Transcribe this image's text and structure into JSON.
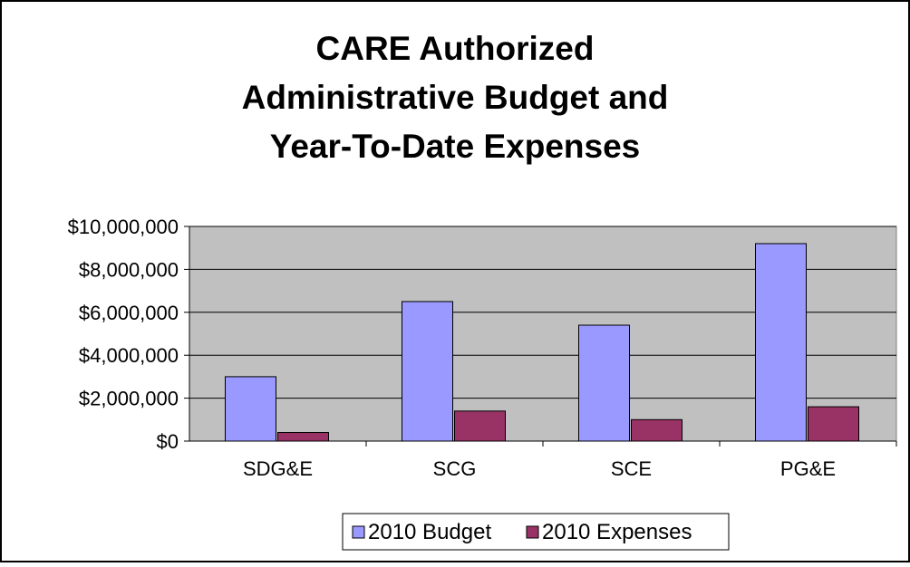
{
  "chart_data": {
    "type": "bar",
    "title_lines": [
      "CARE Authorized",
      "Administrative Budget and",
      "Year-To-Date Expenses"
    ],
    "categories": [
      "SDG&E",
      "SCG",
      "SCE",
      "PG&E"
    ],
    "series": [
      {
        "name": "2010 Budget",
        "values": [
          3000000,
          6500000,
          5400000,
          9200000
        ],
        "color": "#9999ff"
      },
      {
        "name": "2010 Expenses",
        "values": [
          400000,
          1400000,
          1000000,
          1600000
        ],
        "color": "#993366"
      }
    ],
    "yticks": [
      "$0",
      "$2,000,000",
      "$4,000,000",
      "$6,000,000",
      "$8,000,000",
      "$10,000,000"
    ],
    "ylim": [
      0,
      10000000
    ],
    "grid": true,
    "plot_background": "#c0c0c0",
    "legend_position": "bottom"
  }
}
